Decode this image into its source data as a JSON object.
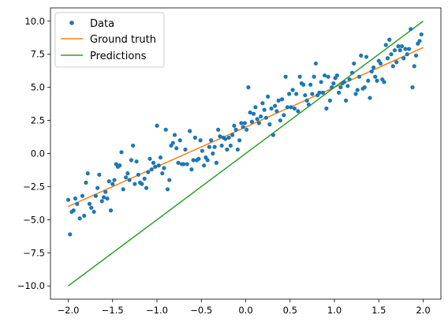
{
  "chart_data": {
    "type": "scatter",
    "xlim": [
      -2.2,
      2.2
    ],
    "ylim": [
      -11.0,
      11.0
    ],
    "x_ticks": [
      -2.0,
      -1.5,
      -1.0,
      -0.5,
      0.0,
      0.5,
      1.0,
      1.5,
      2.0
    ],
    "x_tick_labels": [
      "−2.0",
      "−1.5",
      "−1.0",
      "−0.5",
      "0.0",
      "0.5",
      "1.0",
      "1.5",
      "2.0"
    ],
    "y_ticks": [
      -10.0,
      -7.5,
      -5.0,
      -2.5,
      0.0,
      2.5,
      5.0,
      7.5,
      10.0
    ],
    "y_tick_labels": [
      "−10.0",
      "−7.5",
      "−5.0",
      "−2.5",
      "0.0",
      "2.5",
      "5.0",
      "7.5",
      "10.0"
    ],
    "grid": false,
    "legend_position": "top-left",
    "series": [
      {
        "name": "Data",
        "kind": "scatter",
        "color": "#1f77b4",
        "points": [
          [
            -2.0,
            -3.5
          ],
          [
            -1.98,
            -6.1
          ],
          [
            -1.96,
            -4.4
          ],
          [
            -1.94,
            -4.3
          ],
          [
            -1.92,
            -3.4
          ],
          [
            -1.9,
            -3.8
          ],
          [
            -1.87,
            -4.9
          ],
          [
            -1.84,
            -3.2
          ],
          [
            -1.82,
            -4.7
          ],
          [
            -1.8,
            -2.2
          ],
          [
            -1.78,
            -1.5
          ],
          [
            -1.76,
            -3.8
          ],
          [
            -1.74,
            -4.1
          ],
          [
            -1.71,
            -4.4
          ],
          [
            -1.69,
            -3.2
          ],
          [
            -1.67,
            -2.6
          ],
          [
            -1.65,
            -1.6
          ],
          [
            -1.62,
            -3.6
          ],
          [
            -1.6,
            -3.3
          ],
          [
            -1.58,
            -2.9
          ],
          [
            -1.56,
            -3.4
          ],
          [
            -1.54,
            -2.1
          ],
          [
            -1.52,
            -4.3
          ],
          [
            -1.5,
            -2.3
          ],
          [
            -1.48,
            -2.0
          ],
          [
            -1.46,
            -0.8
          ],
          [
            -1.44,
            -1.0
          ],
          [
            -1.42,
            -0.9
          ],
          [
            -1.4,
            0.1
          ],
          [
            -1.38,
            -2.7
          ],
          [
            -1.35,
            -1.8
          ],
          [
            -1.33,
            -1.5
          ],
          [
            -1.31,
            -2.0
          ],
          [
            -1.29,
            -0.5
          ],
          [
            -1.27,
            0.6
          ],
          [
            -1.25,
            -2.3
          ],
          [
            -1.23,
            -0.6
          ],
          [
            -1.21,
            -1.6
          ],
          [
            -1.19,
            -2.2
          ],
          [
            -1.17,
            -2.3
          ],
          [
            -1.14,
            -1.9
          ],
          [
            -1.12,
            -2.6
          ],
          [
            -1.1,
            -1.4
          ],
          [
            -1.08,
            -0.4
          ],
          [
            -1.06,
            -1.2
          ],
          [
            -1.04,
            -0.7
          ],
          [
            -1.02,
            -1.0
          ],
          [
            -1.0,
            2.1
          ],
          [
            -0.98,
            -0.9
          ],
          [
            -0.96,
            -0.3
          ],
          [
            -0.94,
            -1.5
          ],
          [
            -0.92,
            -1.1
          ],
          [
            -0.9,
            1.8
          ],
          [
            -0.88,
            -2.7
          ],
          [
            -0.86,
            -2.0
          ],
          [
            -0.84,
            0.6
          ],
          [
            -0.82,
            0.8
          ],
          [
            -0.8,
            1.4
          ],
          [
            -0.78,
            0.4
          ],
          [
            -0.76,
            -0.7
          ],
          [
            -0.74,
            1.0
          ],
          [
            -0.72,
            -0.8
          ],
          [
            -0.7,
            -0.8
          ],
          [
            -0.68,
            0.3
          ],
          [
            -0.66,
            -0.8
          ],
          [
            -0.63,
            1.7
          ],
          [
            -0.61,
            -1.2
          ],
          [
            -0.59,
            -0.5
          ],
          [
            -0.57,
            1.2
          ],
          [
            -0.55,
            -0.5
          ],
          [
            -0.53,
            -0.4
          ],
          [
            -0.51,
            1.0
          ],
          [
            -0.49,
            0.2
          ],
          [
            -0.47,
            -0.9
          ],
          [
            -0.45,
            -0.3
          ],
          [
            -0.43,
            -0.5
          ],
          [
            -0.41,
            0.5
          ],
          [
            -0.39,
            1.0
          ],
          [
            -0.37,
            0.0
          ],
          [
            -0.35,
            0.5
          ],
          [
            -0.33,
            -0.7
          ],
          [
            -0.31,
            1.8
          ],
          [
            -0.29,
            1.3
          ],
          [
            -0.27,
            0.6
          ],
          [
            -0.25,
            1.2
          ],
          [
            -0.23,
            1.1
          ],
          [
            -0.21,
            0.3
          ],
          [
            -0.19,
            1.2
          ],
          [
            -0.17,
            0.6
          ],
          [
            -0.15,
            1.4
          ],
          [
            -0.13,
            2.1
          ],
          [
            -0.11,
            1.8
          ],
          [
            -0.09,
            0.3
          ],
          [
            -0.07,
            1.0
          ],
          [
            -0.05,
            2.3
          ],
          [
            -0.03,
            2.0
          ],
          [
            -0.01,
            2.3
          ],
          [
            0.01,
            1.8
          ],
          [
            0.03,
            5.0
          ],
          [
            0.05,
            3.1
          ],
          [
            0.07,
            2.4
          ],
          [
            0.09,
            3.0
          ],
          [
            0.11,
            3.5
          ],
          [
            0.13,
            2.6
          ],
          [
            0.15,
            2.3
          ],
          [
            0.17,
            2.8
          ],
          [
            0.19,
            3.8
          ],
          [
            0.21,
            3.3
          ],
          [
            0.23,
            2.7
          ],
          [
            0.25,
            4.3
          ],
          [
            0.27,
            2.2
          ],
          [
            0.29,
            3.4
          ],
          [
            0.31,
            1.4
          ],
          [
            0.33,
            3.6
          ],
          [
            0.35,
            3.2
          ],
          [
            0.37,
            4.0
          ],
          [
            0.39,
            2.5
          ],
          [
            0.41,
            4.1
          ],
          [
            0.43,
            2.9
          ],
          [
            0.45,
            5.8
          ],
          [
            0.47,
            3.5
          ],
          [
            0.49,
            4.5
          ],
          [
            0.51,
            3.5
          ],
          [
            0.53,
            4.8
          ],
          [
            0.55,
            3.4
          ],
          [
            0.57,
            4.5
          ],
          [
            0.59,
            3.2
          ],
          [
            0.61,
            5.8
          ],
          [
            0.63,
            5.3
          ],
          [
            0.65,
            5.2
          ],
          [
            0.67,
            4.4
          ],
          [
            0.69,
            4.0
          ],
          [
            0.71,
            3.7
          ],
          [
            0.73,
            5.2
          ],
          [
            0.75,
            4.5
          ],
          [
            0.77,
            5.8
          ],
          [
            0.79,
            6.8
          ],
          [
            0.81,
            4.4
          ],
          [
            0.83,
            4.6
          ],
          [
            0.85,
            5.4
          ],
          [
            0.87,
            4.6
          ],
          [
            0.89,
            5.9
          ],
          [
            0.91,
            3.4
          ],
          [
            0.93,
            5.8
          ],
          [
            0.95,
            4.0
          ],
          [
            0.97,
            5.0
          ],
          [
            0.99,
            5.3
          ],
          [
            1.01,
            5.7
          ],
          [
            1.03,
            5.9
          ],
          [
            1.05,
            4.6
          ],
          [
            1.07,
            5.0
          ],
          [
            1.09,
            5.3
          ],
          [
            1.11,
            5.4
          ],
          [
            1.13,
            4.0
          ],
          [
            1.15,
            5.1
          ],
          [
            1.17,
            5.6
          ],
          [
            1.2,
            6.1
          ],
          [
            1.22,
            6.8
          ],
          [
            1.24,
            4.5
          ],
          [
            1.26,
            4.8
          ],
          [
            1.28,
            5.8
          ],
          [
            1.3,
            7.4
          ],
          [
            1.32,
            4.9
          ],
          [
            1.34,
            5.0
          ],
          [
            1.36,
            7.3
          ],
          [
            1.38,
            5.5
          ],
          [
            1.4,
            4.2
          ],
          [
            1.42,
            6.2
          ],
          [
            1.44,
            6.5
          ],
          [
            1.46,
            5.8
          ],
          [
            1.48,
            5.5
          ],
          [
            1.5,
            7.0
          ],
          [
            1.52,
            6.8
          ],
          [
            1.54,
            5.6
          ],
          [
            1.56,
            5.4
          ],
          [
            1.58,
            8.2
          ],
          [
            1.6,
            7.2
          ],
          [
            1.62,
            8.6
          ],
          [
            1.64,
            7.5
          ],
          [
            1.66,
            6.6
          ],
          [
            1.68,
            7.8
          ],
          [
            1.7,
            6.9
          ],
          [
            1.72,
            8.1
          ],
          [
            1.74,
            7.8
          ],
          [
            1.76,
            8.1
          ],
          [
            1.78,
            7.2
          ],
          [
            1.8,
            7.9
          ],
          [
            1.82,
            7.5
          ],
          [
            1.84,
            7.9
          ],
          [
            1.86,
            9.4
          ],
          [
            1.88,
            5.0
          ],
          [
            1.9,
            6.6
          ],
          [
            1.92,
            7.4
          ],
          [
            1.94,
            8.3
          ],
          [
            1.96,
            8.5
          ],
          [
            1.98,
            9.0
          ]
        ]
      },
      {
        "name": "Ground truth",
        "kind": "line",
        "color": "#ff7f0e",
        "points": [
          [
            -2.0,
            -4.0
          ],
          [
            2.0,
            8.0
          ]
        ]
      },
      {
        "name": "Predictions",
        "kind": "line",
        "color": "#2ca02c",
        "points": [
          [
            -2.0,
            -10.0
          ],
          [
            2.0,
            10.0
          ]
        ]
      }
    ]
  }
}
